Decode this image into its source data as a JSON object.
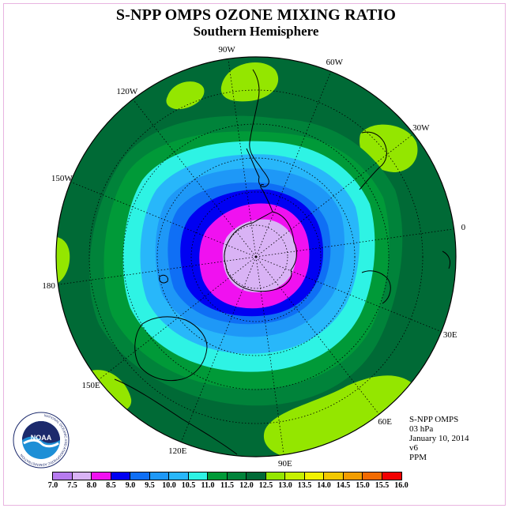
{
  "title": "S-NPP OMPS OZONE MIXING RATIO",
  "subtitle": "Southern Hemisphere",
  "longitude_labels": [
    {
      "text": "90W",
      "lon": -90
    },
    {
      "text": "60W",
      "lon": -60
    },
    {
      "text": "30W",
      "lon": -30
    },
    {
      "text": "0",
      "lon": 0
    },
    {
      "text": "30E",
      "lon": 30
    },
    {
      "text": "60E",
      "lon": 60
    },
    {
      "text": "90E",
      "lon": 90
    },
    {
      "text": "120E",
      "lon": 120
    },
    {
      "text": "150E",
      "lon": 150
    },
    {
      "text": "180",
      "lon": 180
    },
    {
      "text": "150W",
      "lon": -150
    },
    {
      "text": "120W",
      "lon": -120
    }
  ],
  "info": {
    "instrument": "S-NPP OMPS",
    "level": "03 hPa",
    "date": "January 10, 2014",
    "version": "v6",
    "units": "PPM"
  },
  "logo": {
    "text": "NOAA",
    "ring_text": "NATIONAL OCEANIC AND ATMOSPHERIC ADMINISTRATION",
    "colors": {
      "navy": "#1c2a6c",
      "sky": "#1d8fd6"
    }
  },
  "colorbar": {
    "ticks": [
      "7.0",
      "7.5",
      "8.0",
      "8.5",
      "9.0",
      "9.5",
      "10.0",
      "10.5",
      "11.0",
      "11.5",
      "12.0",
      "12.5",
      "13.0",
      "13.5",
      "14.0",
      "14.5",
      "15.0",
      "15.5",
      "16.0"
    ],
    "colors": [
      "#b77bef",
      "#d9b3f5",
      "#f011f0",
      "#0000f2",
      "#0f6ff5",
      "#1e98f7",
      "#28b7fa",
      "#2ef3e4",
      "#009a38",
      "#00833a",
      "#006a36",
      "#94e600",
      "#c6f000",
      "#f2f200",
      "#f2c800",
      "#f29d00",
      "#f26a00",
      "#f20000",
      "#a0522d"
    ]
  },
  "chart_data": {
    "type": "polar-contour-map",
    "projection": "south-polar-stereographic",
    "units": "PPM",
    "levels": [
      7.0,
      7.5,
      8.0,
      8.5,
      9.0,
      9.5,
      10.0,
      10.5,
      11.0,
      11.5,
      12.0,
      12.5,
      13.0,
      13.5,
      14.0,
      14.5,
      15.0,
      15.5,
      16.0
    ],
    "bands": [
      {
        "range": [
          12.0,
          12.5
        ],
        "color": "#006a36",
        "region": "outer hemisphere"
      },
      {
        "range": [
          11.5,
          12.0
        ],
        "color": "#00833a",
        "region": "ring ~-45 lat"
      },
      {
        "range": [
          11.0,
          11.5
        ],
        "color": "#009a38",
        "region": "ring ~-50 lat"
      },
      {
        "range": [
          10.5,
          11.0
        ],
        "color": "#2ef3e4",
        "region": "ring ~-55 lat"
      },
      {
        "range": [
          10.0,
          10.5
        ],
        "color": "#28b7fa",
        "region": "ring ~-58 lat"
      },
      {
        "range": [
          9.5,
          10.0
        ],
        "color": "#1e98f7",
        "region": "ring ~-62 lat"
      },
      {
        "range": [
          9.0,
          9.5
        ],
        "color": "#0f6ff5",
        "region": "ring ~-65 lat"
      },
      {
        "range": [
          8.5,
          9.0
        ],
        "color": "#0000f2",
        "region": "ring ~-70 lat"
      },
      {
        "range": [
          8.0,
          8.5
        ],
        "color": "#f011f0",
        "region": "ring ~-75 lat"
      },
      {
        "range": [
          7.5,
          8.0
        ],
        "color": "#d9b3f5",
        "region": "polar cap ~-80 lat"
      },
      {
        "range": [
          12.5,
          13.0
        ],
        "color": "#94e600",
        "region": "isolated patches near edge"
      }
    ]
  }
}
